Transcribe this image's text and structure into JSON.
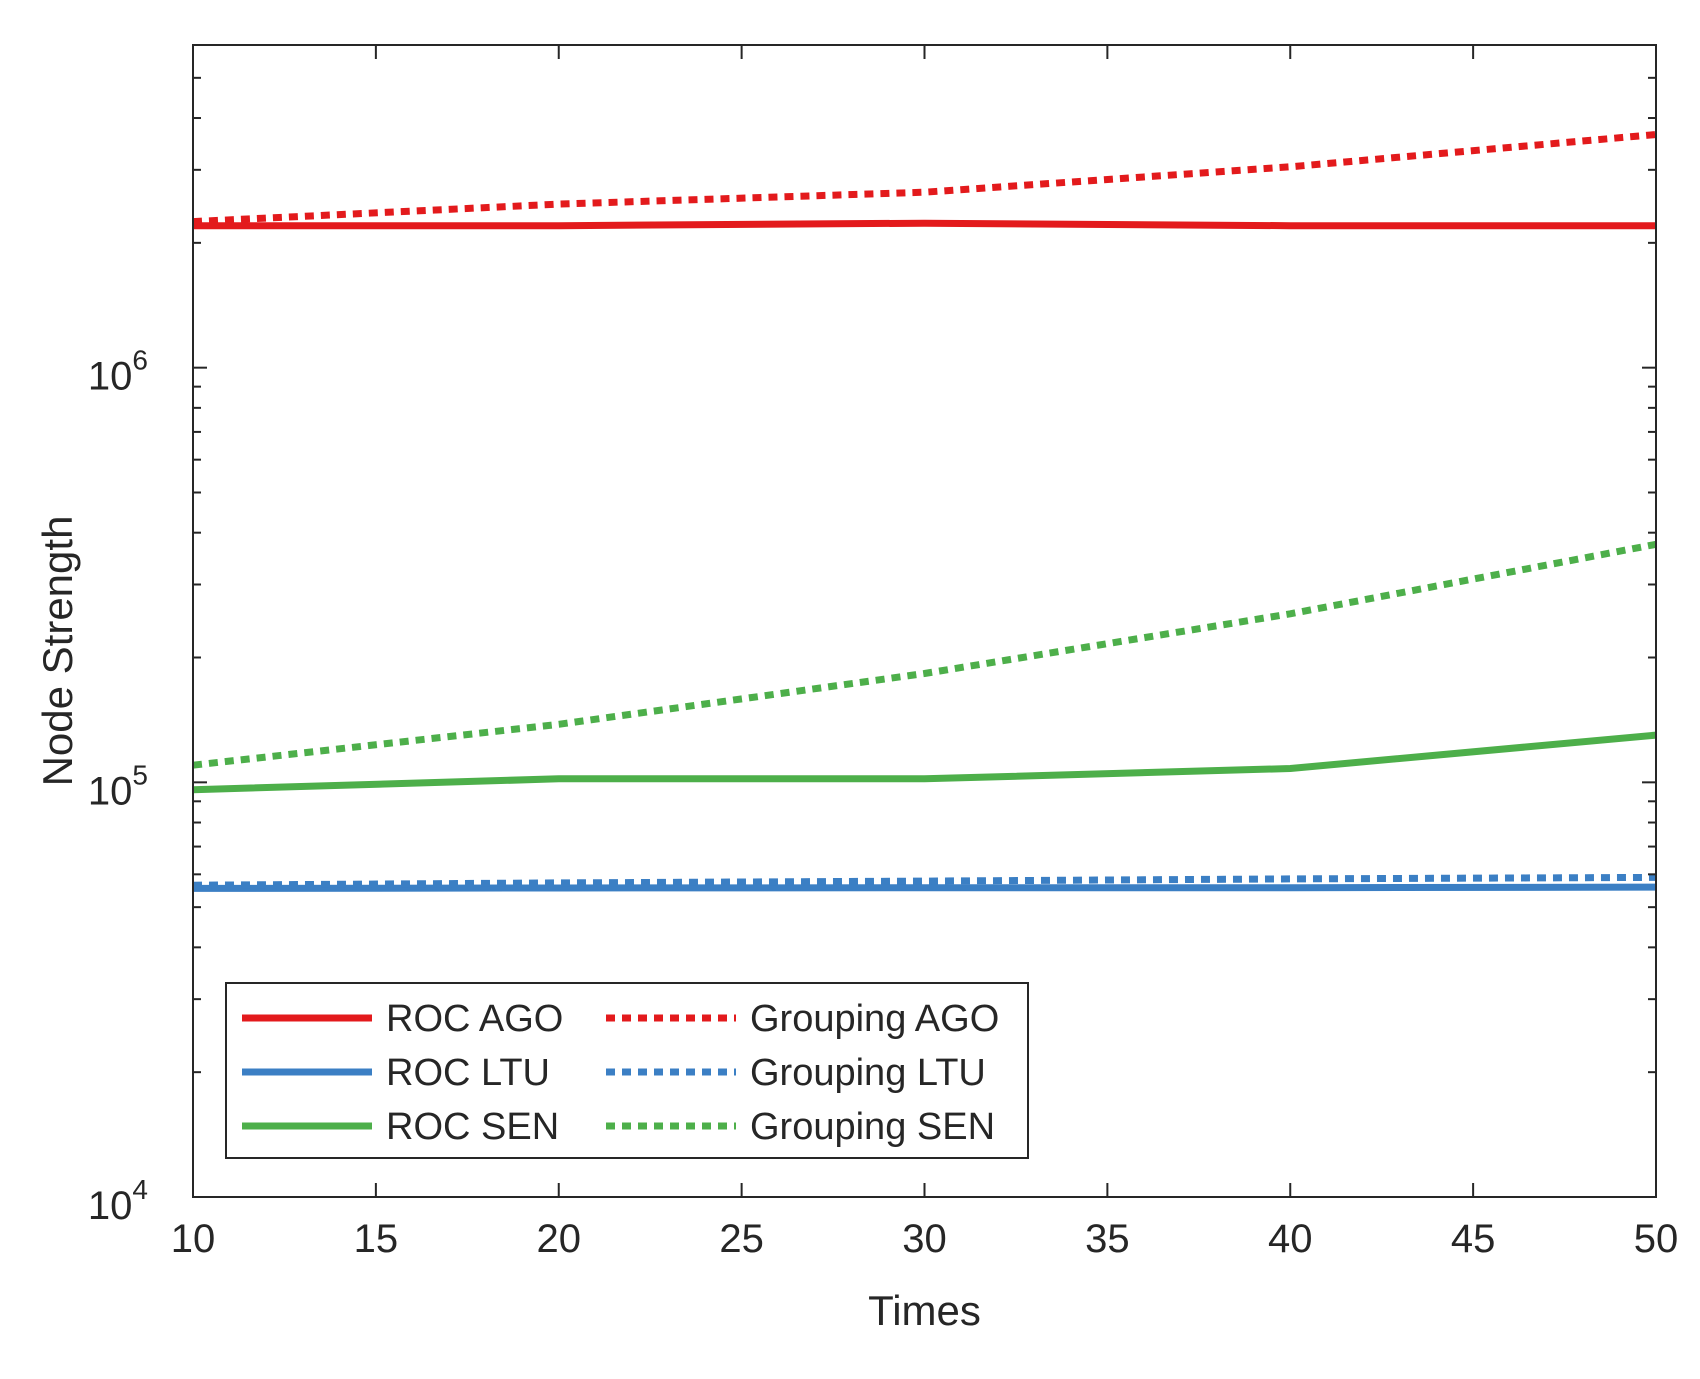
{
  "chart_data": {
    "type": "line",
    "xlabel": "Times",
    "ylabel": "Node Strength",
    "xlim": [
      10,
      50
    ],
    "ylim": [
      10000,
      6000000
    ],
    "yscale": "log",
    "grid": false,
    "legend_position": "bottom-left",
    "x_ticks": [
      "10",
      "15",
      "20",
      "25",
      "30",
      "35",
      "40",
      "45",
      "50"
    ],
    "y_ticks": [
      {
        "base": "10",
        "exp": "4",
        "value": 10000
      },
      {
        "base": "10",
        "exp": "5",
        "value": 100000
      },
      {
        "base": "10",
        "exp": "6",
        "value": 1000000
      }
    ],
    "series": [
      {
        "name": "ROC AGO",
        "color": "#e31a1c",
        "dash": "solid",
        "x": [
          10,
          20,
          30,
          40,
          50
        ],
        "y": [
          2200000,
          2200000,
          2230000,
          2200000,
          2200000
        ]
      },
      {
        "name": "Grouping AGO",
        "color": "#e31a1c",
        "dash": "dotted",
        "x": [
          10,
          20,
          30,
          40,
          50
        ],
        "y": [
          2250000,
          2480000,
          2650000,
          3050000,
          3650000
        ]
      },
      {
        "name": "ROC LTU",
        "color": "#3b7fc4",
        "dash": "solid",
        "x": [
          10,
          20,
          30,
          40,
          50
        ],
        "y": [
          55500,
          55600,
          55700,
          55700,
          55900
        ]
      },
      {
        "name": "Grouping LTU",
        "color": "#3b7fc4",
        "dash": "dotted",
        "x": [
          10,
          20,
          30,
          40,
          50
        ],
        "y": [
          56500,
          57200,
          57800,
          58500,
          59000
        ]
      },
      {
        "name": "ROC SEN",
        "color": "#4daf4a",
        "dash": "solid",
        "x": [
          10,
          20,
          30,
          40,
          50
        ],
        "y": [
          96000,
          102000,
          102000,
          108000,
          130000
        ]
      },
      {
        "name": "Grouping SEN",
        "color": "#4daf4a",
        "dash": "dotted",
        "x": [
          10,
          20,
          30,
          40,
          50
        ],
        "y": [
          110000,
          138000,
          183000,
          255000,
          375000
        ]
      }
    ]
  }
}
